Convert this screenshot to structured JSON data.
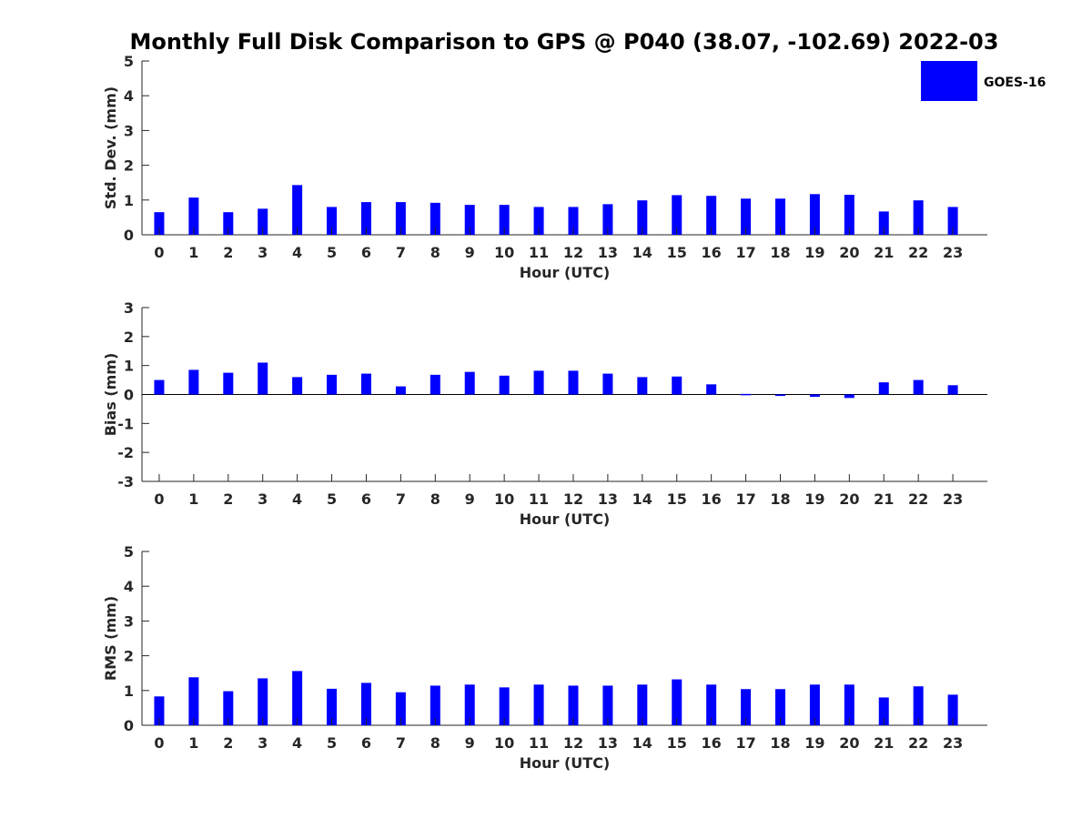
{
  "title": "Monthly Full Disk Comparison to GPS @ P040 (38.07, -102.69) 2022-03",
  "legend": {
    "label": "GOES-16",
    "color": "#0000ff",
    "placement": "top-right"
  },
  "chart_data": [
    {
      "type": "bar",
      "xlabel": "Hour (UTC)",
      "ylabel": "Std. Dev. (mm)",
      "ylim": [
        0,
        5
      ],
      "yticks": [
        "0",
        "1",
        "2",
        "3",
        "4",
        "5"
      ],
      "categories": [
        "0",
        "1",
        "2",
        "3",
        "4",
        "5",
        "6",
        "7",
        "8",
        "9",
        "10",
        "11",
        "12",
        "13",
        "14",
        "15",
        "16",
        "17",
        "18",
        "19",
        "20",
        "21",
        "22",
        "23"
      ],
      "series": [
        {
          "name": "GOES-16",
          "color": "#0000ff",
          "values": [
            0.65,
            1.07,
            0.65,
            0.75,
            1.43,
            0.8,
            0.94,
            0.94,
            0.92,
            0.86,
            0.86,
            0.8,
            0.8,
            0.88,
            0.99,
            1.14,
            1.12,
            1.04,
            1.04,
            1.17,
            1.15,
            0.67,
            0.99,
            0.8
          ]
        }
      ],
      "grid": false
    },
    {
      "type": "bar",
      "xlabel": "Hour (UTC)",
      "ylabel": "Bias (mm)",
      "ylim": [
        -3,
        3
      ],
      "yticks": [
        "-3",
        "-2",
        "-1",
        "0",
        "1",
        "2",
        "3"
      ],
      "categories": [
        "0",
        "1",
        "2",
        "3",
        "4",
        "5",
        "6",
        "7",
        "8",
        "9",
        "10",
        "11",
        "12",
        "13",
        "14",
        "15",
        "16",
        "17",
        "18",
        "19",
        "20",
        "21",
        "22",
        "23"
      ],
      "series": [
        {
          "name": "GOES-16",
          "color": "#0000ff",
          "values": [
            0.5,
            0.85,
            0.75,
            1.1,
            0.6,
            0.68,
            0.72,
            0.28,
            0.68,
            0.78,
            0.65,
            0.82,
            0.82,
            0.72,
            0.6,
            0.62,
            0.35,
            0.02,
            -0.05,
            -0.08,
            -0.12,
            0.42,
            0.5,
            0.32
          ]
        }
      ],
      "grid": false
    },
    {
      "type": "bar",
      "xlabel": "Hour (UTC)",
      "ylabel": "RMS (mm)",
      "ylim": [
        0,
        5
      ],
      "yticks": [
        "0",
        "1",
        "2",
        "3",
        "4",
        "5"
      ],
      "categories": [
        "0",
        "1",
        "2",
        "3",
        "4",
        "5",
        "6",
        "7",
        "8",
        "9",
        "10",
        "11",
        "12",
        "13",
        "14",
        "15",
        "16",
        "17",
        "18",
        "19",
        "20",
        "21",
        "22",
        "23"
      ],
      "series": [
        {
          "name": "GOES-16",
          "color": "#0000ff",
          "values": [
            0.83,
            1.38,
            0.98,
            1.35,
            1.56,
            1.05,
            1.22,
            0.95,
            1.14,
            1.17,
            1.09,
            1.17,
            1.14,
            1.14,
            1.17,
            1.32,
            1.17,
            1.04,
            1.04,
            1.17,
            1.17,
            0.8,
            1.12,
            0.88
          ]
        }
      ],
      "grid": false
    }
  ]
}
